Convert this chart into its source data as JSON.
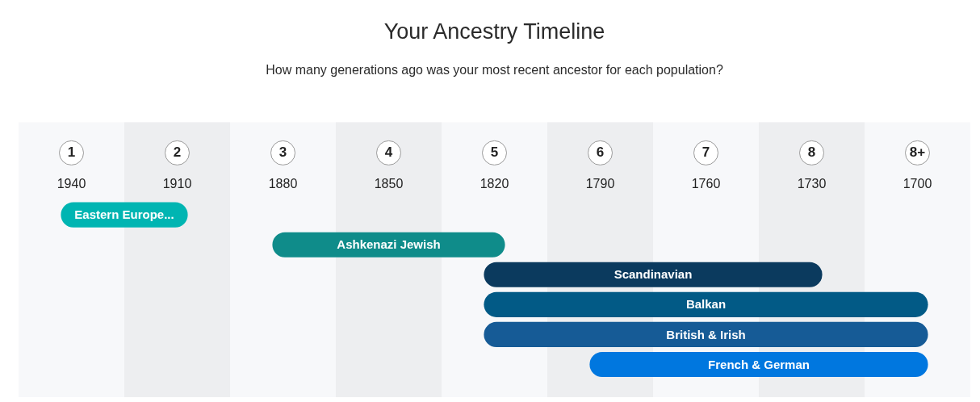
{
  "chart_data": {
    "type": "bar",
    "orientation": "horizontal",
    "title": "Your Ancestry Timeline",
    "subtitle": "How many generations ago was your most recent ancestor for each population?",
    "categories": [
      "Eastern Europe...",
      "Ashkenazi Jewish",
      "Scandinavian",
      "Balkan",
      "British & Irish",
      "French & German"
    ],
    "base": [
      0.9,
      2.9,
      4.9,
      4.9,
      4.9,
      5.9
    ],
    "values": [
      1.2,
      2.2,
      3.2,
      4.2,
      4.2,
      3.2
    ],
    "colors": [
      "#00b5b2",
      "#0f8c8a",
      "#0b3a5e",
      "#025a86",
      "#165b96",
      "#0077df"
    ],
    "xlim": [
      0.5,
      9.5
    ],
    "xticks": [
      1,
      2,
      3,
      4,
      5,
      6,
      7,
      8,
      {
        "value": 9,
        "label": "8+"
      }
    ],
    "x2lim": [
      1955,
      1685
    ],
    "x2ticks": [
      1940,
      1910,
      1880,
      1850,
      1820,
      1790,
      1760,
      1730,
      1700
    ],
    "bands": [
      {
        "axis": "x",
        "from": 1.5,
        "to": 2.5,
        "color": "#edeef0"
      },
      {
        "axis": "x",
        "from": 3.5,
        "to": 4.5,
        "color": "#edeef0"
      },
      {
        "axis": "x",
        "from": 5.5,
        "to": 6.5,
        "color": "#edeef0"
      },
      {
        "axis": "x",
        "from": 7.5,
        "to": 8.5,
        "color": "#edeef0"
      }
    ],
    "tick_labels": "x",
    "grid": false,
    "legend": false
  }
}
